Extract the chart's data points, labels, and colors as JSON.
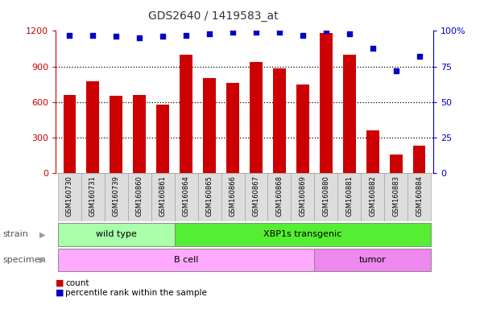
{
  "title": "GDS2640 / 1419583_at",
  "samples": [
    "GSM160730",
    "GSM160731",
    "GSM160739",
    "GSM160860",
    "GSM160861",
    "GSM160864",
    "GSM160865",
    "GSM160866",
    "GSM160867",
    "GSM160868",
    "GSM160869",
    "GSM160880",
    "GSM160881",
    "GSM160882",
    "GSM160883",
    "GSM160884"
  ],
  "counts": [
    660,
    775,
    650,
    660,
    580,
    1000,
    800,
    760,
    940,
    885,
    745,
    1180,
    1000,
    360,
    155,
    230
  ],
  "percentiles": [
    97,
    97,
    96,
    95,
    96,
    97,
    98,
    99,
    99,
    99,
    97,
    100,
    98,
    88,
    72,
    82
  ],
  "ylim_left": [
    0,
    1200
  ],
  "ylim_right": [
    0,
    100
  ],
  "yticks_left": [
    0,
    300,
    600,
    900,
    1200
  ],
  "ytick_labels_left": [
    "0",
    "300",
    "600",
    "900",
    "1200"
  ],
  "yticks_right": [
    0,
    25,
    50,
    75,
    100
  ],
  "ytick_labels_right": [
    "0",
    "25",
    "50",
    "75",
    "100%"
  ],
  "bar_color": "#cc0000",
  "dot_color": "#0000cc",
  "bg_color": "#ffffff",
  "strain_groups": [
    {
      "label": "wild type",
      "start": 0,
      "end": 5,
      "color": "#aaffaa"
    },
    {
      "label": "XBP1s transgenic",
      "start": 5,
      "end": 16,
      "color": "#55ee33"
    }
  ],
  "specimen_groups": [
    {
      "label": "B cell",
      "start": 0,
      "end": 11,
      "color": "#ffaaff"
    },
    {
      "label": "tumor",
      "start": 11,
      "end": 16,
      "color": "#ee88ee"
    }
  ],
  "strain_label": "strain",
  "specimen_label": "specimen",
  "legend_count_label": "count",
  "legend_pct_label": "percentile rank within the sample",
  "left_axis_color": "#cc0000",
  "right_axis_color": "#0000cc",
  "title_color": "#333333",
  "xtick_bg": "#dddddd"
}
